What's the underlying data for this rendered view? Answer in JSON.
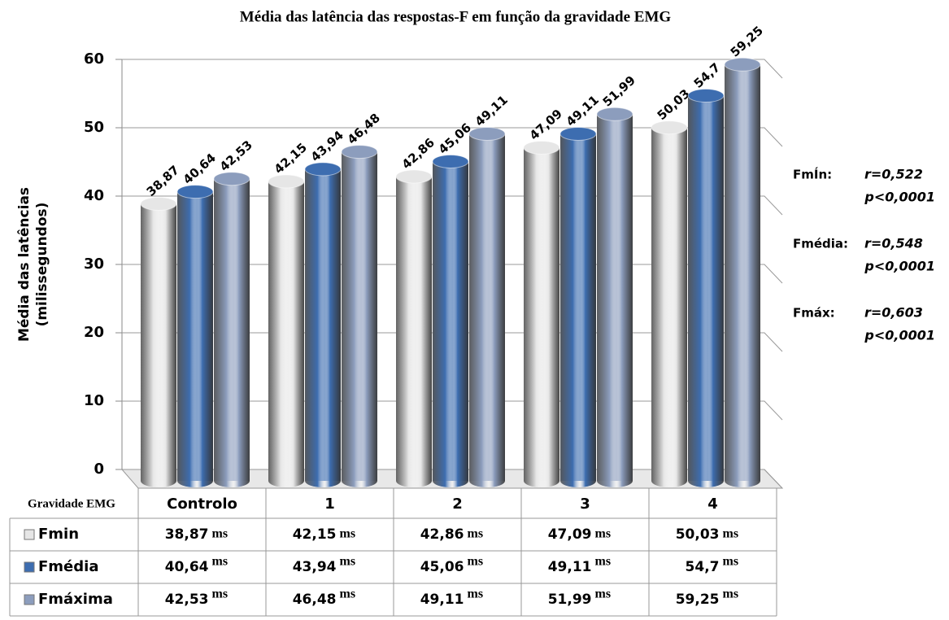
{
  "chart_data": {
    "type": "bar",
    "title": "Média das latência das respostas-F  em função da gravidade EMG",
    "xlabel": "Gravidade EMG",
    "ylabel": [
      "Média das latências",
      "(milissegundos)"
    ],
    "categories": [
      "Controlo",
      "1",
      "2",
      "3",
      "4"
    ],
    "unit": "ms",
    "series": [
      {
        "name": "Fmin",
        "color": "#e6e6e6",
        "values": [
          38.87,
          42.15,
          42.86,
          47.09,
          50.03
        ],
        "value_labels": [
          "38,87",
          "42,15",
          "42,86",
          "47,09",
          "50,03"
        ]
      },
      {
        "name": "Fmédia",
        "color": "#3d6db0",
        "values": [
          40.64,
          43.94,
          45.06,
          49.11,
          54.7
        ],
        "value_labels": [
          "40,64",
          "43,94",
          "45,06",
          "49,11",
          "54,7"
        ]
      },
      {
        "name": "Fmáxima",
        "color": "#8c9dbd",
        "values": [
          42.53,
          46.48,
          49.11,
          51.99,
          59.25
        ],
        "value_labels": [
          "42,53",
          "46,48",
          "49,11",
          "51,99",
          "59,25"
        ]
      }
    ],
    "ylim": [
      0,
      60
    ],
    "yticks": [
      0,
      10,
      20,
      30,
      40,
      50,
      60
    ],
    "grid": true,
    "annotations": [
      {
        "label": "FmÍn:",
        "r": "r=0,522",
        "p": "p<0,0001"
      },
      {
        "label": "Fmédia:",
        "r": "r=0,548",
        "p": "p<0,0001"
      },
      {
        "label": "Fmáx:",
        "r": "r=0,603",
        "p": "p<0,0001"
      }
    ]
  }
}
